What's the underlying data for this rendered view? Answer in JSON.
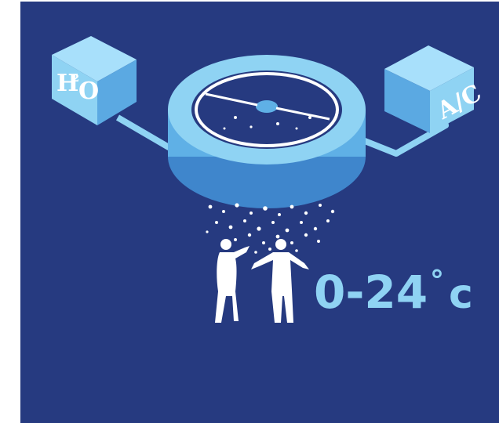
{
  "water_box": {
    "label_h": "H",
    "label_sup": "2",
    "label_o": "O"
  },
  "ac_box": {
    "label": "A/C"
  },
  "temperature": {
    "range": "0-24",
    "degree": "°",
    "unit": "c"
  },
  "colors": {
    "background": "#263a80",
    "light_blue": "#8fd3f3",
    "mid_blue": "#5fb0e6",
    "dark_blue": "#3f86cc",
    "white": "#ffffff"
  }
}
